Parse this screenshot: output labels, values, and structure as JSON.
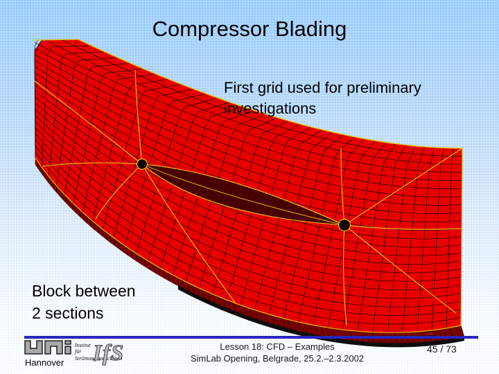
{
  "slide": {
    "title": "Compressor Blading",
    "subtitle_line1": "First grid used for preliminary",
    "subtitle_line2": "investigations",
    "caption_line1": "Block between",
    "caption_line2": "2 sections",
    "footer": {
      "line1": "Lesson 18: CFD – Examples",
      "line2": "SimLab Opening, Belgrade, 25.2.–2.3.2002",
      "page": "45 / 73"
    },
    "logo": {
      "uni_word": "uni",
      "city": "Hannover",
      "institute_line1": "Institut",
      "institute_line2": "für",
      "institute_line3": "Strömungsmaschinen",
      "acronym": "IfS"
    }
  },
  "figure": {
    "description": "Red structured CFD block mesh between two blade sections; black grid lines, yellow block-boundary lines, two O-grid singular points at blade leading and trailing edges",
    "colors": {
      "surface_red": "#e60000",
      "grid_line": "#000000",
      "block_line_yellow": "#eec200",
      "side_face_dark": "#7a0000",
      "blade_dark": "#4d0000",
      "background_top": "#99ccff",
      "background_bottom": "#ffffff",
      "separator_blue": "#2626bb",
      "title_color": "#000000"
    }
  }
}
